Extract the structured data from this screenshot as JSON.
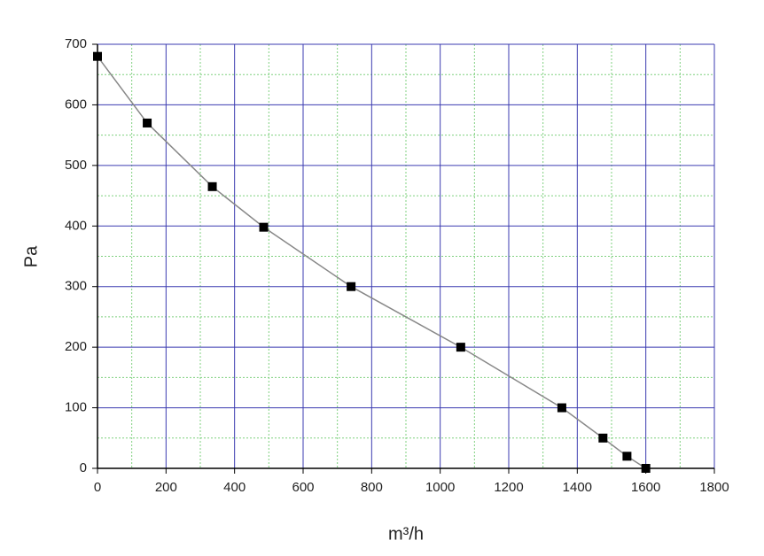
{
  "chart_data": {
    "type": "line",
    "x_label": "m³/h",
    "y_label": "Pa",
    "series": [
      {
        "name": "Pa",
        "color": "#888888",
        "marker_color": "#000000",
        "x": [
          0,
          145,
          335,
          485,
          740,
          1060,
          1355,
          1475,
          1545,
          1600
        ],
        "values": [
          680,
          570,
          465,
          398,
          300,
          200,
          100,
          50,
          20,
          0
        ]
      }
    ],
    "xlim": [
      0,
      1800
    ],
    "xticks": [
      0,
      200,
      400,
      600,
      800,
      1000,
      1200,
      1400,
      1600,
      1800
    ],
    "ylim": [
      0,
      700
    ],
    "yticks": [
      0,
      100,
      200,
      300,
      400,
      500,
      600,
      700
    ],
    "grid": true,
    "grid_color": "#3b3bb0",
    "minor_grid": true,
    "minor_grid_color": "#7fd07f"
  }
}
